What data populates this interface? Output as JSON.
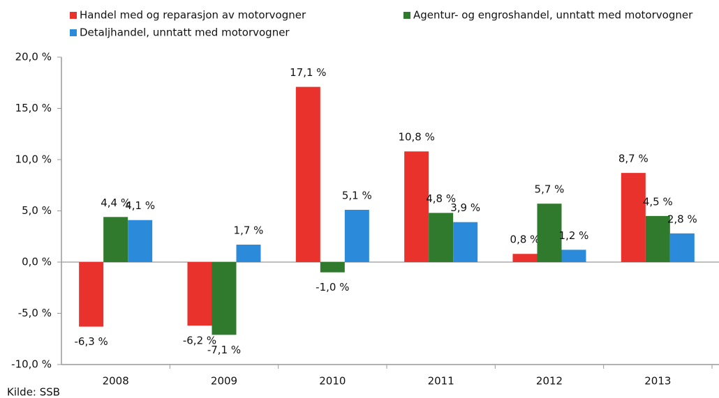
{
  "chart_data": {
    "type": "bar",
    "categories": [
      "2008",
      "2009",
      "2010",
      "2011",
      "2012",
      "2013"
    ],
    "series": [
      {
        "name": "Handel med og reparasjon av motorvogner",
        "color": "#e8322b",
        "values": [
          -6.3,
          -6.2,
          17.1,
          10.8,
          0.8,
          8.7
        ],
        "value_labels": [
          "-6,3 %",
          "-6,2 %",
          "17,1 %",
          "10,8 %",
          "0,8 %",
          "8,7 %"
        ]
      },
      {
        "name": "Agentur- og engroshandel, unntatt med motorvogner",
        "color": "#2f7a2c",
        "values": [
          4.4,
          -7.1,
          -1.0,
          4.8,
          5.7,
          4.5
        ],
        "value_labels": [
          "4,4 %",
          "-7,1 %",
          "-1,0 %",
          "4,8 %",
          "5,7 %",
          "4,5 %"
        ]
      },
      {
        "name": "Detaljhandel, unntatt med motorvogner",
        "color": "#2b8ad9",
        "values": [
          4.1,
          1.7,
          5.1,
          3.9,
          1.2,
          2.8
        ],
        "value_labels": [
          "4,1 %",
          "1,7 %",
          "5,1 %",
          "3,9 %",
          "1,2 %",
          "2,8 %"
        ]
      }
    ],
    "ylim": [
      -10,
      20
    ],
    "yticks": [
      {
        "value": -10,
        "label": "-10,0 %"
      },
      {
        "value": -5,
        "label": "-5,0 %"
      },
      {
        "value": 0,
        "label": "0,0 %"
      },
      {
        "value": 5,
        "label": "5,0 %"
      },
      {
        "value": 10,
        "label": "10,0 %"
      },
      {
        "value": 15,
        "label": "15,0 %"
      },
      {
        "value": 20,
        "label": "20,0 %"
      }
    ],
    "source": "Kilde: SSB"
  }
}
